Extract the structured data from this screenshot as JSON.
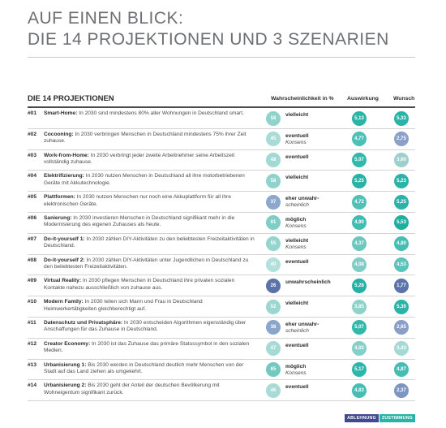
{
  "title": {
    "line1": "AUF EINEN BLICK:",
    "line2": "DIE 14 PROJEKTIONEN UND 3 SZENARIEN"
  },
  "header": {
    "projections": "DIE 14 PROJEKTIONEN",
    "probability": "Wahrscheinlichkeit in %",
    "impact": "Auswirkung",
    "wish": "Wunsch"
  },
  "rows": [
    {
      "num": "#01",
      "title": "Smart-Home:",
      "desc": " In 2030 sind mindestens 80% aller Wohnungen in Deutschland smart.",
      "prob": "58",
      "verdict": "vielleicht",
      "consensus": "",
      "impact": "5,13",
      "wish": "5,33",
      "prob_color": "#8fd3cc",
      "impact_color": "#2ab4a7",
      "wish_color": "#2ab4a7"
    },
    {
      "num": "#02",
      "title": "Cocooning:",
      "desc": " In 2030 verbringen Menschen in Deutschland mindestens 75% ihrer Zeit zuhause.",
      "prob": "45",
      "verdict": "eventuell",
      "consensus": "Konsens",
      "impact": "4,77",
      "wish": "2,75",
      "prob_color": "#a9dcd7",
      "impact_color": "#4cc0b5",
      "wish_color": "#8ba0c8"
    },
    {
      "num": "#03",
      "title": "Work-from-Home:",
      "desc": " In 2030 verbringt jeder zweite Arbeitnehmer seine Arbeitszeit vollständig zuhause.",
      "prob": "48",
      "verdict": "eventuell",
      "consensus": "",
      "impact": "5,07",
      "wish": "3,60",
      "prob_color": "#a3d9d4",
      "impact_color": "#32b7ab",
      "wish_color": "#9fcfcb"
    },
    {
      "num": "#04",
      "title": "Elektrifizierung:",
      "desc": " In 2030 nutzen Menschen in Deutschland all ihre motorbetriebenen Geräte mit Akkutechnologie.",
      "prob": "58",
      "verdict": "vielleicht",
      "consensus": "",
      "impact": "5,25",
      "wish": "5,23",
      "prob_color": "#8fd3cc",
      "impact_color": "#27b2a5",
      "wish_color": "#2ab4a7"
    },
    {
      "num": "#05",
      "title": "Plattformen:",
      "desc": " In 2030 nutzen Menschen nur noch eine Akkuplattform für all ihre elektronischen Geräte.",
      "prob": "37",
      "verdict": "eher unwahr-",
      "consensus": "scheinlich",
      "impact": "4,72",
      "wish": "5,25",
      "prob_color": "#8da8cc",
      "impact_color": "#50c1b7",
      "wish_color": "#2ab4a7"
    },
    {
      "num": "#06",
      "title": "Sanierung:",
      "desc": " In 2030 investieren Menschen in Deutschland signifikant mehr in die Modernisierung des eigenen Zuhauses als heute.",
      "prob": "61",
      "verdict": "möglich",
      "consensus": "Konsens",
      "impact": "4,90",
      "wish": "5,53",
      "prob_color": "#80cdc5",
      "impact_color": "#40bcb1",
      "wish_color": "#20ae9f"
    },
    {
      "num": "#07",
      "title": "Do-it-yourself 1:",
      "desc": " In 2030 zählen DIY-Aktivitäten zu den beliebtesten Freizeitaktivitäten in Deutschland.",
      "prob": "55",
      "verdict": "vielleicht",
      "consensus": "Konsens",
      "impact": "4,37",
      "wish": "4,80",
      "prob_color": "#94d5ce",
      "impact_color": "#6ac8be",
      "wish_color": "#48beb3"
    },
    {
      "num": "#08",
      "title": "Do-it-yourself 2:",
      "desc": " In 2030 zählen DIY-Aktivitäten unter Jugendlichen in Deutschland zu den beliebtesten Freizeitaktivitäten.",
      "prob": "40",
      "verdict": "eventuell",
      "consensus": "",
      "impact": "4,08",
      "wish": "4,53",
      "prob_color": "#b3e0db",
      "impact_color": "#7fcdc4",
      "wish_color": "#5bc4ba"
    },
    {
      "num": "#09",
      "title": "Virtual Reality:",
      "desc": " In 2030 pflegen Menschen in Deutschland ihre privaten sozialen Kontakte nahezu ausschließlich von zuhause aus.",
      "prob": "26",
      "verdict": "unwahrscheinlich",
      "consensus": "",
      "impact": "5,28",
      "wish": "1,77",
      "prob_color": "#5a73a9",
      "impact_color": "#26b1a4",
      "wish_color": "#5c74aa"
    },
    {
      "num": "#10",
      "title": "Modern Family:",
      "desc": " In 2030 teilen sich Mann und Frau in Deutschland Heimwerkertätigkeiten gleichberechtigt auf.",
      "prob": "52",
      "verdict": "vielleicht",
      "consensus": "",
      "impact": "3,85",
      "wish": "5,30",
      "prob_color": "#9bd7d0",
      "impact_color": "#8fd2ca",
      "wish_color": "#2ab4a7"
    },
    {
      "num": "#11",
      "title": "Datenschutz und Privatsphäre:",
      "desc": " In 2030 entscheiden Algorithmen eigenständig über Anschaffungen für das Zuhause in Deutschland.",
      "prob": "38",
      "verdict": "eher unwahr-",
      "consensus": "scheinlich",
      "impact": "5,07",
      "wish": "2,65",
      "prob_color": "#8ba6cb",
      "impact_color": "#32b7ab",
      "wish_color": "#8a9fc8"
    },
    {
      "num": "#12",
      "title": "Creator Economy:",
      "desc": " In 2030 ist das Zuhause das primäre Statussymbol in den sozialen Medien.",
      "prob": "47",
      "verdict": "eventuell",
      "consensus": "",
      "impact": "4,02",
      "wish": "3,43",
      "prob_color": "#a6dad5",
      "impact_color": "#84cfc7",
      "wish_color": "#a5d9d4"
    },
    {
      "num": "#13",
      "title": "Urbanisierung 1:",
      "desc": " Bis 2030 werden in Deutschland deutlich mehr Menschen von der Stadt auf das Land ziehen als umgekehrt.",
      "prob": "65",
      "verdict": "möglich",
      "consensus": "Konsens",
      "impact": "5,17",
      "wish": "4,87",
      "prob_color": "#73c9c0",
      "impact_color": "#2cb5a8",
      "wish_color": "#44bdb2"
    },
    {
      "num": "#14",
      "title": "Urbanisierung 2:",
      "desc": " Bis 2030 geht der Anteil der deutschen Bevölkerung mit Wohneigentum signifikant zurück.",
      "prob": "46",
      "verdict": "eventuell",
      "consensus": "",
      "impact": "4,83",
      "wish": "2,37",
      "prob_color": "#a8dbd6",
      "impact_color": "#46beb3",
      "wish_color": "#7d95c2"
    }
  ],
  "legend": {
    "reject": "ABLEHNUNG",
    "approve": "ZUSTIMMUNG",
    "reject_color": "#3f4b8e",
    "approve_color": "#2ab4a7"
  }
}
